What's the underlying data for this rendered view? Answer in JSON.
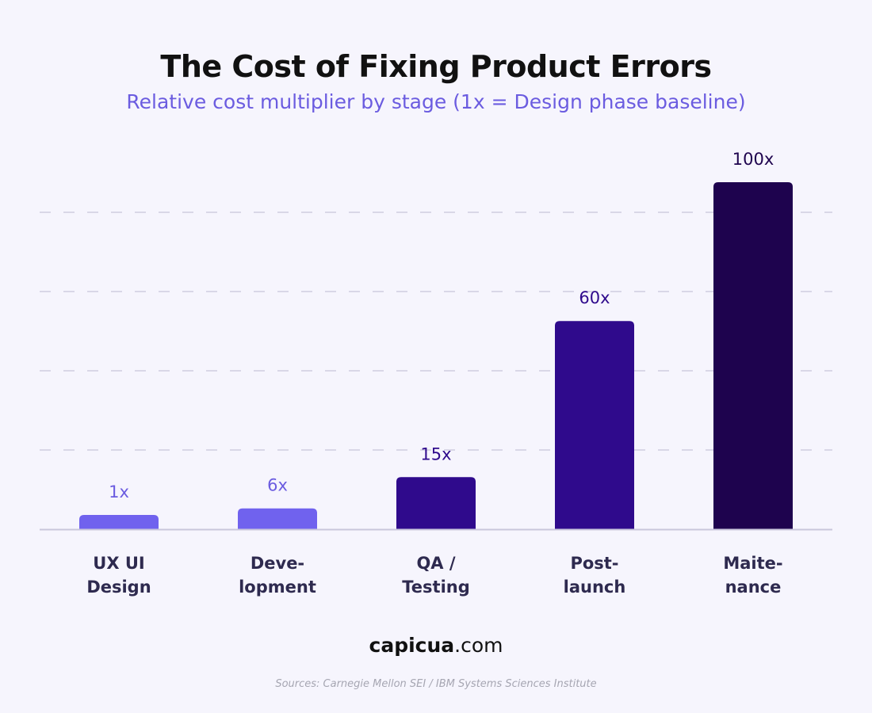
{
  "title": "The Cost of Fixing Product Errors",
  "subtitle": "Relative cost multiplier by stage (1x = Design phase baseline)",
  "brand": {
    "name": "capicua",
    "domain": ".com"
  },
  "source": "Sources: Carnegie Mellon SEI / IBM Systems Sciences Institute",
  "colors": {
    "background": "#f6f5fd",
    "subtitle": "#6b5ce0",
    "grid": "#cfcde0",
    "axis": "#c9c7dc",
    "category_label": "#2e2a4f"
  },
  "chart_data": {
    "type": "bar",
    "title": "The Cost of Fixing Product Errors",
    "subtitle": "Relative cost multiplier by stage (1x = Design phase baseline)",
    "categories": [
      [
        "UX UI",
        "Design"
      ],
      [
        "Deve-",
        "lopment"
      ],
      [
        "QA /",
        "Testing"
      ],
      [
        "Post-",
        "launch"
      ],
      [
        "Maite-",
        "nance"
      ]
    ],
    "values": [
      1,
      6,
      15,
      60,
      100
    ],
    "value_labels": [
      "1x",
      "6x",
      "15x",
      "60x",
      "100x"
    ],
    "bar_colors": [
      "#7062ee",
      "#7062ee",
      "#2f0a8c",
      "#2f0a8c",
      "#1e034e"
    ],
    "value_label_colors": [
      "#6b5ce0",
      "#6b5ce0",
      "#2f0a8c",
      "#2f0a8c",
      "#1e034e"
    ],
    "grid": true,
    "legend": "none"
  }
}
